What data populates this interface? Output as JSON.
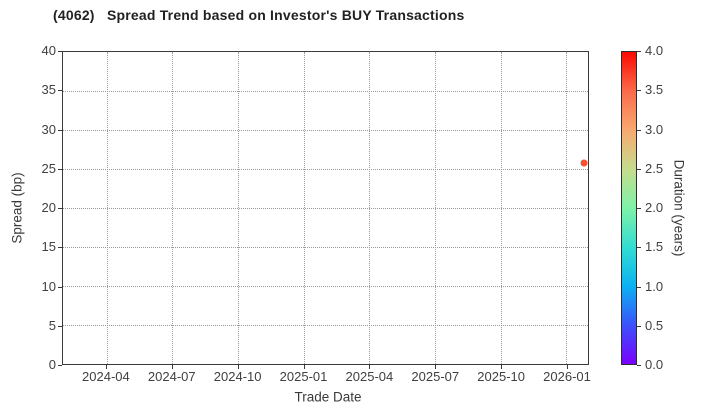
{
  "chart_data": {
    "type": "scatter",
    "title": "(4062)   Spread Trend based on Investor's BUY Transactions",
    "xlabel": "Trade Date",
    "ylabel": "Spread (bp)",
    "xlim": [
      "2024-02",
      "2026-02"
    ],
    "ylim": [
      0,
      40
    ],
    "x_tick_labels": [
      "2024-04",
      "2024-07",
      "2024-10",
      "2025-01",
      "2025-04",
      "2025-07",
      "2025-10",
      "2026-01"
    ],
    "y_ticks": [
      0,
      5,
      10,
      15,
      20,
      25,
      30,
      35,
      40
    ],
    "grid": true,
    "grid_style": "dotted",
    "legend_position": "none",
    "points": [
      {
        "x": "2026-01-26",
        "y": 25.8,
        "duration_years": 3.7,
        "color": "#f4512c"
      }
    ],
    "colorbar": {
      "label": "Duration (years)",
      "range": [
        0,
        4
      ],
      "ticks": [
        "0.0",
        "0.5",
        "1.0",
        "1.5",
        "2.0",
        "2.5",
        "3.0",
        "3.5",
        "4.0"
      ],
      "colormap": "rainbow",
      "stops": [
        {
          "value": 0.0,
          "color": "#7a00fe"
        },
        {
          "value": 0.5,
          "color": "#3b52fb"
        },
        {
          "value": 1.0,
          "color": "#0bb2f1"
        },
        {
          "value": 1.5,
          "color": "#33ddd2"
        },
        {
          "value": 2.0,
          "color": "#7ef2a7"
        },
        {
          "value": 2.5,
          "color": "#c6dc8e"
        },
        {
          "value": 3.0,
          "color": "#f8a96f"
        },
        {
          "value": 3.5,
          "color": "#fb6a4b"
        },
        {
          "value": 4.0,
          "color": "#fa0a00"
        }
      ]
    }
  },
  "colors": {
    "background": "#ffffff",
    "spine": "#3a3a3a",
    "grid": "#9a9a9a",
    "tick_text": "#404040",
    "title_text": "#222222"
  }
}
